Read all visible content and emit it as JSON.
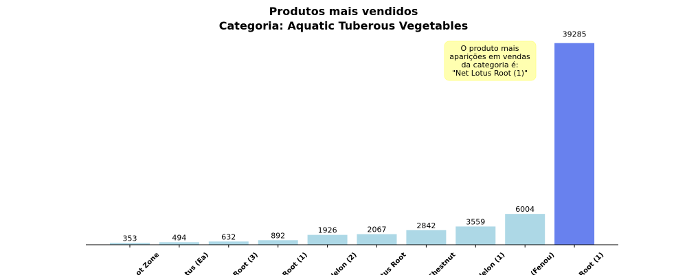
{
  "chart_data": {
    "type": "bar",
    "title": [
      "Produtos mais vendidos",
      "Categoria: Aquatic Tuberous Vegetables"
    ],
    "categories": [
      "ot Zone",
      "tus (Ea)",
      "Root (3)",
      "Root (1)",
      "lelon (2)",
      "tus Root",
      "Chestnut",
      "lelon (1)",
      "(Fenou)",
      "Root (1)"
    ],
    "values": [
      353,
      494,
      632,
      892,
      1926,
      2067,
      2842,
      3559,
      6004,
      39285
    ],
    "colors": [
      "#add8e6",
      "#add8e6",
      "#add8e6",
      "#add8e6",
      "#add8e6",
      "#add8e6",
      "#add8e6",
      "#add8e6",
      "#add8e6",
      "#6881ee"
    ],
    "ylim": [
      0,
      41250
    ],
    "annotation": [
      "O produto mais",
      "aparições em vendas",
      "da categoria é:",
      "\"Net Lotus Root (1)\""
    ]
  }
}
